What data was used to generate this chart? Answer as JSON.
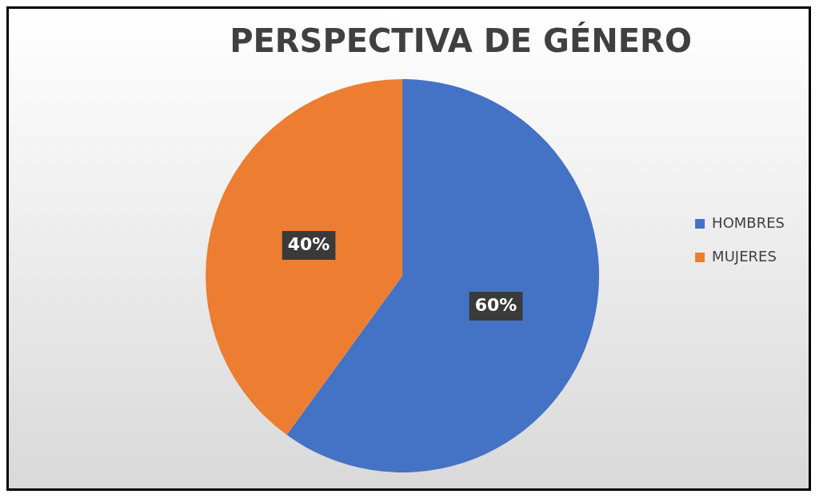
{
  "chart_data": {
    "type": "pie",
    "title": "PERSPECTIVA DE GÉNERO",
    "categories": [
      "HOMBRES",
      "MUJERES"
    ],
    "values": [
      60,
      40
    ],
    "colors": [
      "#4472c4",
      "#ed7d31"
    ],
    "value_labels": [
      "60%",
      "40%"
    ],
    "legend": "right"
  }
}
